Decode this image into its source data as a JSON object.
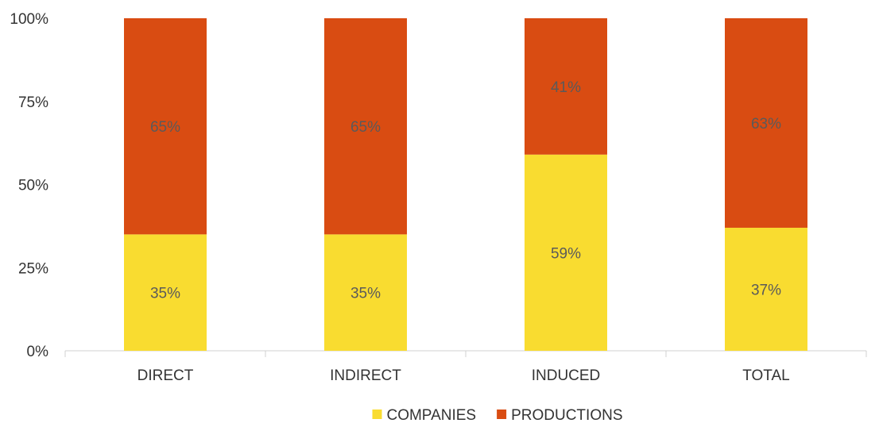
{
  "chart_data": {
    "type": "bar",
    "stacked": true,
    "percent": true,
    "categories": [
      "DIRECT",
      "INDIRECT",
      "INDUCED",
      "TOTAL"
    ],
    "series": [
      {
        "name": "COMPANIES",
        "color": "#f9dc30",
        "values": [
          35,
          35,
          59,
          37
        ],
        "labels": [
          "35%",
          "35%",
          "59%",
          "37%"
        ]
      },
      {
        "name": "PRODUCTIONS",
        "color": "#d94c12",
        "values": [
          65,
          65,
          41,
          63
        ],
        "labels": [
          "65%",
          "65%",
          "41%",
          "63%"
        ]
      }
    ],
    "ylim": [
      0,
      100
    ],
    "yticks": [
      0,
      25,
      50,
      75,
      100
    ],
    "ytick_labels": [
      "0%",
      "25%",
      "50%",
      "75%",
      "100%"
    ],
    "grid": false,
    "legend_position": "bottom",
    "title": "",
    "xlabel": "",
    "ylabel": ""
  }
}
